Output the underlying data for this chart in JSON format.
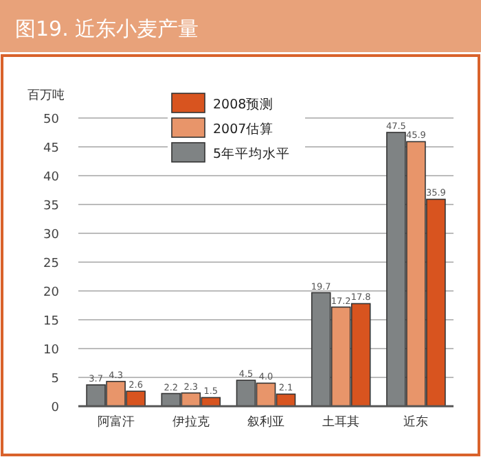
{
  "chart_data": {
    "type": "bar",
    "title": "图19. 近东小麦产量",
    "ylabel": "百万吨",
    "categories": [
      "阿富汗",
      "伊拉克",
      "叙利亚",
      "土耳其",
      "近东"
    ],
    "series": [
      {
        "name": "5年平均水平",
        "color": "#7f8384",
        "values": [
          3.7,
          2.2,
          4.5,
          19.7,
          47.5
        ],
        "value_labels": [
          "3.7",
          "2.2",
          "4.5",
          "19.7",
          "47.5"
        ]
      },
      {
        "name": "2007估算",
        "color": "#e8956a",
        "values": [
          4.3,
          2.3,
          4.0,
          17.2,
          45.9
        ],
        "value_labels": [
          "4.3",
          "2.3",
          "4.0",
          "17.2",
          "45.9"
        ]
      },
      {
        "name": "2008预测",
        "color": "#d8541f",
        "values": [
          2.6,
          1.5,
          2.1,
          17.8,
          35.9
        ],
        "value_labels": [
          "2.6",
          "1.5",
          "2.1",
          "17.8",
          "35.9"
        ]
      }
    ],
    "ylim": [
      0,
      50
    ],
    "yticks": [
      0,
      5,
      10,
      15,
      20,
      25,
      30,
      35,
      40,
      45,
      50
    ],
    "grid": "y",
    "legend": "top left"
  }
}
